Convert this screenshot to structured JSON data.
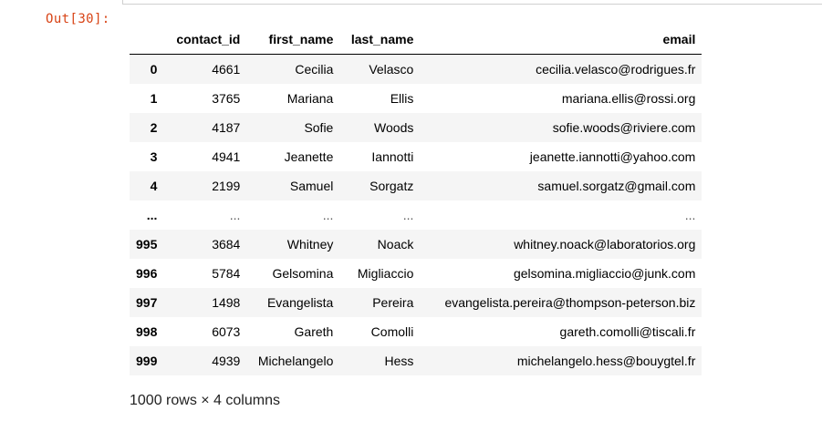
{
  "prompt": "Out[30]:",
  "table": {
    "columns": [
      "",
      "contact_id",
      "first_name",
      "last_name",
      "email"
    ],
    "rows": [
      {
        "index": "0",
        "contact_id": "4661",
        "first_name": "Cecilia",
        "last_name": "Velasco",
        "email": "cecilia.velasco@rodrigues.fr"
      },
      {
        "index": "1",
        "contact_id": "3765",
        "first_name": "Mariana",
        "last_name": "Ellis",
        "email": "mariana.ellis@rossi.org"
      },
      {
        "index": "2",
        "contact_id": "4187",
        "first_name": "Sofie",
        "last_name": "Woods",
        "email": "sofie.woods@riviere.com"
      },
      {
        "index": "3",
        "contact_id": "4941",
        "first_name": "Jeanette",
        "last_name": "Iannotti",
        "email": "jeanette.iannotti@yahoo.com"
      },
      {
        "index": "4",
        "contact_id": "2199",
        "first_name": "Samuel",
        "last_name": "Sorgatz",
        "email": "samuel.sorgatz@gmail.com"
      },
      {
        "index": "...",
        "contact_id": "...",
        "first_name": "...",
        "last_name": "...",
        "email": "..."
      },
      {
        "index": "995",
        "contact_id": "3684",
        "first_name": "Whitney",
        "last_name": "Noack",
        "email": "whitney.noack@laboratorios.org"
      },
      {
        "index": "996",
        "contact_id": "5784",
        "first_name": "Gelsomina",
        "last_name": "Migliaccio",
        "email": "gelsomina.migliaccio@junk.com"
      },
      {
        "index": "997",
        "contact_id": "1498",
        "first_name": "Evangelista",
        "last_name": "Pereira",
        "email": "evangelista.pereira@thompson-peterson.biz"
      },
      {
        "index": "998",
        "contact_id": "6073",
        "first_name": "Gareth",
        "last_name": "Comolli",
        "email": "gareth.comolli@tiscali.fr"
      },
      {
        "index": "999",
        "contact_id": "4939",
        "first_name": "Michelangelo",
        "last_name": "Hess",
        "email": "michelangelo.hess@bouygtel.fr"
      }
    ]
  },
  "footer": "1000 rows × 4 columns"
}
